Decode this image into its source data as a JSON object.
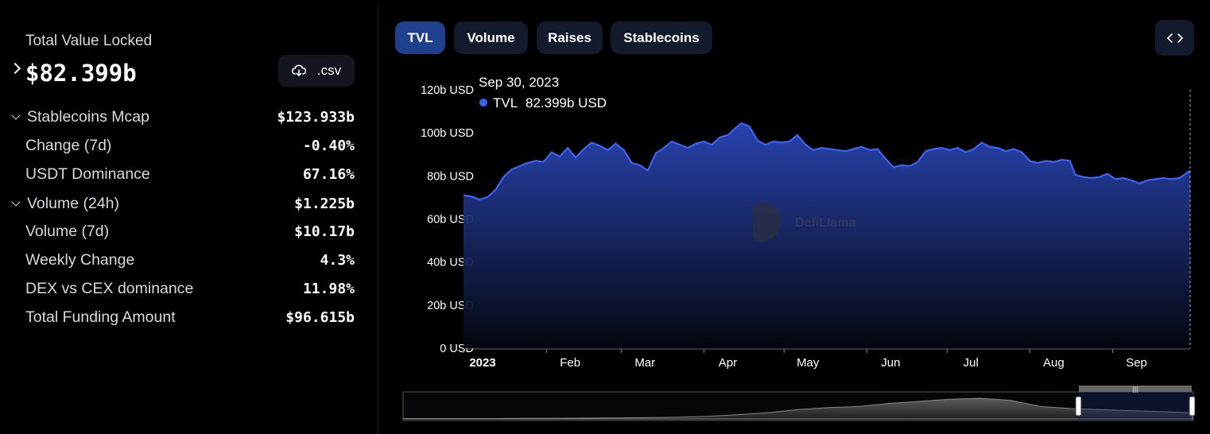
{
  "summary": {
    "tvl_label": "Total Value Locked",
    "tvl_value": "$82.399b",
    "csv_label": ".csv"
  },
  "metrics": [
    {
      "label": "Stablecoins Mcap",
      "value": "$123.933b",
      "expandable": true
    },
    {
      "label": "Change (7d)",
      "value": "-0.40%",
      "expandable": false
    },
    {
      "label": "USDT Dominance",
      "value": "67.16%",
      "expandable": false
    },
    {
      "label": "Volume (24h)",
      "value": "$1.225b",
      "expandable": true
    },
    {
      "label": "Volume (7d)",
      "value": "$10.17b",
      "expandable": false
    },
    {
      "label": "Weekly Change",
      "value": "4.3%",
      "expandable": false
    },
    {
      "label": "DEX vs CEX dominance",
      "value": "11.98%",
      "expandable": false
    },
    {
      "label": "Total Funding Amount",
      "value": "$96.615b",
      "expandable": false
    }
  ],
  "tabs": [
    {
      "label": "TVL",
      "active": true
    },
    {
      "label": "Volume",
      "active": false
    },
    {
      "label": "Raises",
      "active": false
    },
    {
      "label": "Stablecoins",
      "active": false
    }
  ],
  "tooltip": {
    "date": "Sep 30, 2023",
    "series": "TVL",
    "value": "82.399b USD"
  },
  "watermark": "DefiLlama",
  "colors": {
    "accent": "#3b63f5",
    "tab_active": "#1f3f8f",
    "tab_inactive": "#131a2c"
  },
  "icons": {
    "download": "cloud-download-icon",
    "embed": "code-embed-icon"
  },
  "chart_data": {
    "type": "area",
    "series_name": "TVL",
    "unit": "USD",
    "ylim": [
      0,
      120
    ],
    "y_ticks": [
      "0 USD",
      "20b USD",
      "40b USD",
      "60b USD",
      "80b USD",
      "100b USD",
      "120b USD"
    ],
    "x_ticks": [
      "2023",
      "Feb",
      "Mar",
      "Apr",
      "May",
      "Jun",
      "Jul",
      "Aug",
      "Sep"
    ],
    "x_range": [
      "2023-01-01",
      "2023-09-30"
    ],
    "grid": false,
    "points": [
      [
        "2023-01-01",
        71.0
      ],
      [
        "2023-01-04",
        70.5
      ],
      [
        "2023-01-07",
        69.0
      ],
      [
        "2023-01-10",
        70.2
      ],
      [
        "2023-01-13",
        73.5
      ],
      [
        "2023-01-16",
        79.5
      ],
      [
        "2023-01-19",
        83.0
      ],
      [
        "2023-01-22",
        84.5
      ],
      [
        "2023-01-25",
        86.0
      ],
      [
        "2023-01-28",
        87.0
      ],
      [
        "2023-01-31",
        86.5
      ],
      [
        "2023-02-03",
        91.0
      ],
      [
        "2023-02-06",
        89.0
      ],
      [
        "2023-02-09",
        93.0
      ],
      [
        "2023-02-12",
        88.5
      ],
      [
        "2023-02-15",
        92.5
      ],
      [
        "2023-02-18",
        95.5
      ],
      [
        "2023-02-21",
        94.0
      ],
      [
        "2023-02-24",
        92.0
      ],
      [
        "2023-02-27",
        95.0
      ],
      [
        "2023-03-02",
        92.0
      ],
      [
        "2023-03-05",
        86.0
      ],
      [
        "2023-03-08",
        85.0
      ],
      [
        "2023-03-11",
        82.5
      ],
      [
        "2023-03-14",
        90.5
      ],
      [
        "2023-03-17",
        93.0
      ],
      [
        "2023-03-20",
        96.0
      ],
      [
        "2023-03-23",
        94.5
      ],
      [
        "2023-03-26",
        93.0
      ],
      [
        "2023-03-29",
        95.0
      ],
      [
        "2023-04-01",
        96.0
      ],
      [
        "2023-04-04",
        94.5
      ],
      [
        "2023-04-07",
        98.0
      ],
      [
        "2023-04-10",
        99.0
      ],
      [
        "2023-04-13",
        102.5
      ],
      [
        "2023-04-15",
        104.5
      ],
      [
        "2023-04-18",
        103.0
      ],
      [
        "2023-04-21",
        96.5
      ],
      [
        "2023-04-24",
        94.5
      ],
      [
        "2023-04-27",
        96.0
      ],
      [
        "2023-04-30",
        95.5
      ],
      [
        "2023-05-03",
        96.0
      ],
      [
        "2023-05-06",
        99.0
      ],
      [
        "2023-05-09",
        94.5
      ],
      [
        "2023-05-12",
        92.0
      ],
      [
        "2023-05-15",
        93.0
      ],
      [
        "2023-05-18",
        92.5
      ],
      [
        "2023-05-21",
        92.0
      ],
      [
        "2023-05-24",
        91.5
      ],
      [
        "2023-05-27",
        92.5
      ],
      [
        "2023-05-30",
        93.5
      ],
      [
        "2023-06-02",
        92.0
      ],
      [
        "2023-06-05",
        92.5
      ],
      [
        "2023-06-08",
        88.0
      ],
      [
        "2023-06-11",
        84.0
      ],
      [
        "2023-06-14",
        85.0
      ],
      [
        "2023-06-17",
        84.5
      ],
      [
        "2023-06-20",
        86.5
      ],
      [
        "2023-06-23",
        91.5
      ],
      [
        "2023-06-26",
        92.5
      ],
      [
        "2023-06-29",
        93.0
      ],
      [
        "2023-07-02",
        92.0
      ],
      [
        "2023-07-05",
        93.0
      ],
      [
        "2023-07-08",
        91.0
      ],
      [
        "2023-07-11",
        92.5
      ],
      [
        "2023-07-14",
        95.5
      ],
      [
        "2023-07-17",
        93.5
      ],
      [
        "2023-07-20",
        93.0
      ],
      [
        "2023-07-23",
        91.5
      ],
      [
        "2023-07-26",
        92.5
      ],
      [
        "2023-07-29",
        91.0
      ],
      [
        "2023-08-01",
        87.0
      ],
      [
        "2023-08-04",
        86.0
      ],
      [
        "2023-08-07",
        87.0
      ],
      [
        "2023-08-10",
        86.5
      ],
      [
        "2023-08-13",
        87.5
      ],
      [
        "2023-08-16",
        87.0
      ],
      [
        "2023-08-18",
        80.5
      ],
      [
        "2023-08-21",
        79.5
      ],
      [
        "2023-08-24",
        79.0
      ],
      [
        "2023-08-27",
        79.5
      ],
      [
        "2023-08-30",
        81.0
      ],
      [
        "2023-09-02",
        78.5
      ],
      [
        "2023-09-05",
        79.0
      ],
      [
        "2023-09-08",
        78.0
      ],
      [
        "2023-09-11",
        76.5
      ],
      [
        "2023-09-14",
        78.0
      ],
      [
        "2023-09-17",
        78.5
      ],
      [
        "2023-09-20",
        79.0
      ],
      [
        "2023-09-23",
        78.5
      ],
      [
        "2023-09-26",
        79.0
      ],
      [
        "2023-09-30",
        82.4
      ]
    ],
    "overview_points": [
      0.02,
      0.02,
      0.02,
      0.02,
      0.03,
      0.03,
      0.04,
      0.05,
      0.06,
      0.08,
      0.12,
      0.2,
      0.3,
      0.45,
      0.55,
      0.6,
      0.75,
      0.85,
      0.95,
      1.0,
      0.9,
      0.6,
      0.5,
      0.45,
      0.4,
      0.35,
      0.3
    ]
  }
}
